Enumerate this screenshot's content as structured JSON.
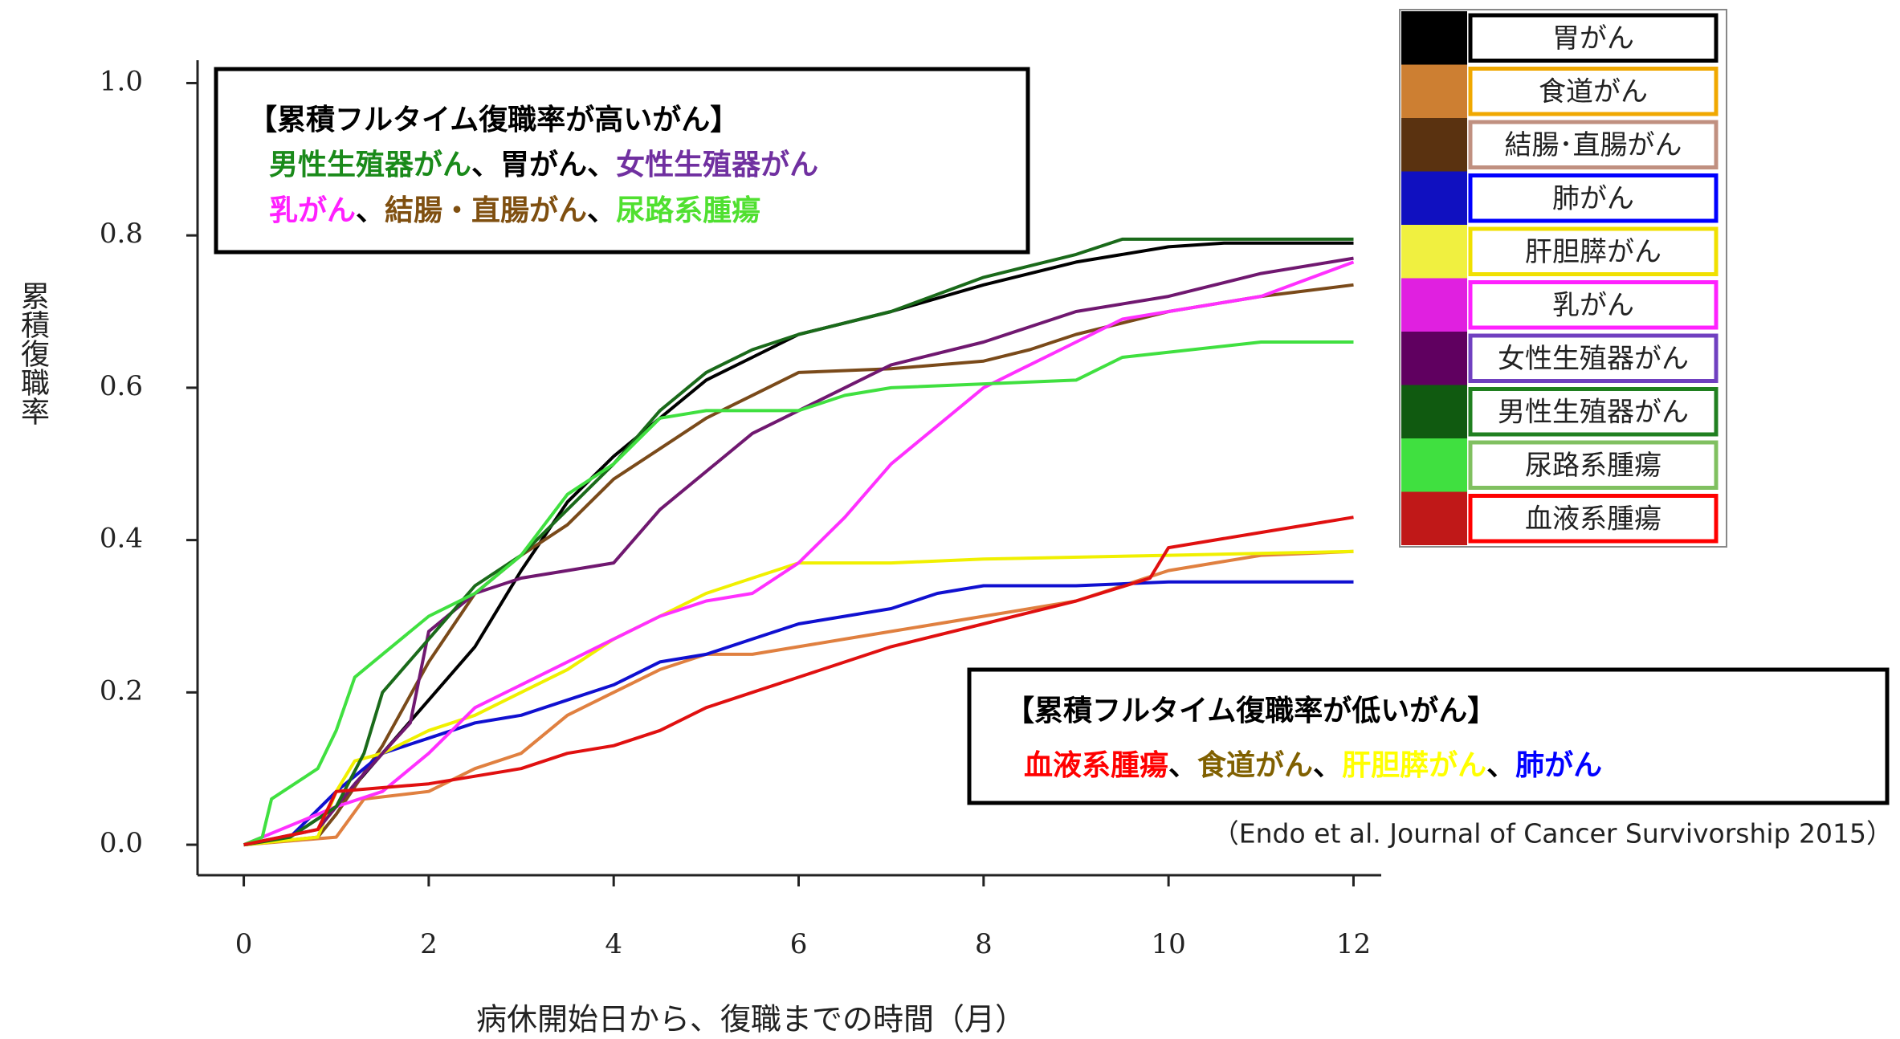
{
  "chart_data": {
    "type": "line",
    "ylabel": "累積復職率",
    "xlabel": "病休開始日から、復職までの時間（月）",
    "xlim": [
      -0.5,
      12.3
    ],
    "ylim": [
      -0.04,
      1.03
    ],
    "xticks": [
      0,
      2,
      4,
      6,
      8,
      10,
      12
    ],
    "yticks": [
      {
        "value": 0,
        "label": "0.0"
      },
      0.2,
      0.4,
      0.6,
      0.8,
      {
        "value": 1,
        "label": "1.0"
      }
    ],
    "series": [
      {
        "name": "胃がん",
        "color": "#000000",
        "legend_color": "#000000",
        "legend_border": "#000000",
        "x": [
          0,
          0.5,
          1,
          1.5,
          2,
          2.5,
          3,
          3.5,
          4,
          4.5,
          5,
          5.5,
          6,
          7,
          8,
          9,
          10,
          10.6,
          12
        ],
        "values": [
          0,
          0.01,
          0.05,
          0.12,
          0.19,
          0.26,
          0.36,
          0.45,
          0.51,
          0.56,
          0.61,
          0.64,
          0.67,
          0.7,
          0.735,
          0.765,
          0.785,
          0.79,
          0.79
        ]
      },
      {
        "name": "食道がん",
        "color": "#e08040",
        "legend_color": "#cd7f32",
        "legend_border": "#f0a800",
        "x": [
          0,
          1,
          1.3,
          2,
          2.5,
          3,
          3.5,
          4,
          4.5,
          5,
          5.5,
          6,
          6.5,
          7,
          8,
          9,
          10,
          11,
          12
        ],
        "values": [
          0,
          0.01,
          0.06,
          0.07,
          0.1,
          0.12,
          0.17,
          0.2,
          0.23,
          0.25,
          0.25,
          0.26,
          0.27,
          0.28,
          0.3,
          0.32,
          0.36,
          0.38,
          0.385
        ]
      },
      {
        "name": "結腸･直腸がん",
        "color": "#7a4a1a",
        "legend_color": "#5a3210",
        "legend_border": "#c09080",
        "x": [
          0,
          0.8,
          1,
          1.5,
          2,
          2.5,
          3,
          3.5,
          4,
          4.5,
          5,
          5.5,
          6,
          7,
          8,
          8.5,
          9,
          10,
          11,
          12
        ],
        "values": [
          0,
          0.01,
          0.04,
          0.13,
          0.24,
          0.33,
          0.38,
          0.42,
          0.48,
          0.52,
          0.56,
          0.59,
          0.62,
          0.625,
          0.635,
          0.65,
          0.67,
          0.7,
          0.72,
          0.735
        ]
      },
      {
        "name": "肺がん",
        "color": "#1010d0",
        "legend_color": "#1010c0",
        "legend_border": "#0000ff",
        "x": [
          0,
          0.5,
          1,
          1.5,
          2,
          2.5,
          3,
          3.5,
          4,
          4.5,
          5,
          5.5,
          6,
          7,
          7.5,
          8,
          9,
          10,
          12
        ],
        "values": [
          0,
          0.01,
          0.07,
          0.12,
          0.14,
          0.16,
          0.17,
          0.19,
          0.21,
          0.24,
          0.25,
          0.27,
          0.29,
          0.31,
          0.33,
          0.34,
          0.34,
          0.345,
          0.345
        ]
      },
      {
        "name": "肝胆膵がん",
        "color": "#f0f000",
        "legend_color": "#f0f040",
        "legend_border": "#f0e000",
        "x": [
          0,
          0.8,
          1,
          1.2,
          1.5,
          2,
          2.5,
          3,
          3.5,
          4,
          4.5,
          5,
          5.5,
          6,
          7,
          8,
          10,
          12
        ],
        "values": [
          0,
          0.01,
          0.07,
          0.11,
          0.12,
          0.15,
          0.17,
          0.2,
          0.23,
          0.27,
          0.3,
          0.33,
          0.35,
          0.37,
          0.37,
          0.375,
          0.38,
          0.385
        ]
      },
      {
        "name": "乳がん",
        "color": "#ff30ff",
        "legend_color": "#e020e0",
        "legend_border": "#ff20ff",
        "x": [
          0,
          1,
          1.5,
          2,
          2.5,
          3,
          3.5,
          4,
          4.5,
          5,
          5.5,
          6,
          6.5,
          7,
          7.5,
          8,
          8.5,
          9,
          9.5,
          10,
          11,
          12
        ],
        "values": [
          0,
          0.05,
          0.07,
          0.12,
          0.18,
          0.21,
          0.24,
          0.27,
          0.3,
          0.32,
          0.33,
          0.37,
          0.43,
          0.5,
          0.55,
          0.6,
          0.63,
          0.66,
          0.69,
          0.7,
          0.72,
          0.765
        ]
      },
      {
        "name": "女性生殖器がん",
        "color": "#701870",
        "legend_color": "#600060",
        "legend_border": "#7040c0",
        "x": [
          0,
          0.8,
          1.2,
          1.8,
          2,
          2.5,
          3,
          3.5,
          4,
          4.5,
          5,
          5.5,
          6,
          6.5,
          7,
          8,
          8.5,
          9,
          10,
          11,
          12
        ],
        "values": [
          0,
          0.02,
          0.08,
          0.16,
          0.28,
          0.33,
          0.35,
          0.36,
          0.37,
          0.44,
          0.49,
          0.54,
          0.57,
          0.6,
          0.63,
          0.66,
          0.68,
          0.7,
          0.72,
          0.75,
          0.77
        ]
      },
      {
        "name": "男性生殖器がん",
        "color": "#1a6a1a",
        "legend_color": "#105a10",
        "legend_border": "#208020",
        "x": [
          0,
          0.5,
          1,
          1.3,
          1.5,
          2,
          2.5,
          3,
          3.5,
          4,
          4.5,
          5,
          5.5,
          6,
          7,
          8,
          9,
          9.5,
          12
        ],
        "values": [
          0,
          0.01,
          0.05,
          0.12,
          0.2,
          0.27,
          0.34,
          0.38,
          0.44,
          0.5,
          0.57,
          0.62,
          0.65,
          0.67,
          0.7,
          0.745,
          0.775,
          0.795,
          0.795
        ]
      },
      {
        "name": "尿路系腫瘍",
        "color": "#40e040",
        "legend_color": "#40e040",
        "legend_border": "#80c060",
        "x": [
          0,
          0.2,
          0.3,
          0.8,
          1,
          1.2,
          1.5,
          2,
          2.5,
          3,
          3.5,
          4,
          4.5,
          5,
          6,
          6.5,
          7,
          9,
          9.5,
          11,
          12
        ],
        "values": [
          0,
          0.01,
          0.06,
          0.1,
          0.15,
          0.22,
          0.25,
          0.3,
          0.33,
          0.38,
          0.46,
          0.5,
          0.56,
          0.57,
          0.57,
          0.59,
          0.6,
          0.61,
          0.64,
          0.66,
          0.66
        ]
      },
      {
        "name": "血液系腫瘍",
        "color": "#e01010",
        "legend_color": "#c01818",
        "legend_border": "#ff0000",
        "x": [
          0,
          0.8,
          1,
          2,
          2.5,
          3,
          3.5,
          4,
          4.5,
          5,
          5.5,
          6,
          6.5,
          7,
          8,
          9,
          9.8,
          10,
          11,
          12
        ],
        "values": [
          0,
          0.02,
          0.07,
          0.08,
          0.09,
          0.1,
          0.12,
          0.13,
          0.15,
          0.18,
          0.2,
          0.22,
          0.24,
          0.26,
          0.29,
          0.32,
          0.35,
          0.39,
          0.41,
          0.43
        ]
      }
    ],
    "annotations": [
      {
        "lines": [
          [
            {
              "text": "【累積フルタイム復職率が高いがん】",
              "color": "#000000"
            }
          ],
          [
            {
              "text": "男性生殖器がん",
              "color": "#1a8a1a"
            },
            {
              "text": "、",
              "color": "#000000"
            },
            {
              "text": "胃がん",
              "color": "#000000"
            },
            {
              "text": "、",
              "color": "#000000"
            },
            {
              "text": "女性生殖器がん",
              "color": "#7030a0"
            }
          ],
          [
            {
              "text": "乳がん",
              "color": "#ff20ff"
            },
            {
              "text": "、",
              "color": "#000000"
            },
            {
              "text": "結腸・直腸がん",
              "color": "#7f4f10"
            },
            {
              "text": "、",
              "color": "#000000"
            },
            {
              "text": "尿路系腫瘍",
              "color": "#50e030"
            }
          ]
        ]
      },
      {
        "lines": [
          [
            {
              "text": "【累積フルタイム復職率が低いがん】",
              "color": "#000000"
            }
          ],
          [
            {
              "text": "血液系腫瘍",
              "color": "#ff0000"
            },
            {
              "text": "、",
              "color": "#000000"
            },
            {
              "text": "食道がん",
              "color": "#806000"
            },
            {
              "text": "、",
              "color": "#000000"
            },
            {
              "text": "肝胆膵がん",
              "color": "#ffff00"
            },
            {
              "text": "、",
              "color": "#000000"
            },
            {
              "text": "肺がん",
              "color": "#0000ff"
            }
          ]
        ]
      }
    ],
    "source": "（Endo et al. Journal of Cancer Survivorship 2015）"
  }
}
